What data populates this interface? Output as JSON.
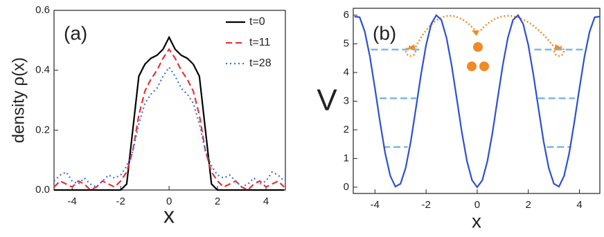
{
  "chart_data": [
    {
      "type": "line",
      "annotation": "(a)",
      "x_label": "x",
      "y_label": "density ρ(x)",
      "x": [
        -4.75,
        -4.5,
        -4.25,
        -4,
        -3.75,
        -3.5,
        -3.25,
        -3,
        -2.75,
        -2.5,
        -2.25,
        -2,
        -1.75,
        -1.5,
        -1.25,
        -1,
        -0.75,
        -0.5,
        -0.25,
        0,
        0.25,
        0.5,
        0.75,
        1,
        1.25,
        1.5,
        1.75,
        2,
        2.25,
        2.5,
        2.75,
        3,
        3.25,
        3.5,
        3.75,
        4,
        4.25,
        4.5,
        4.75
      ],
      "series": [
        {
          "name": "t=0",
          "color": "#000000",
          "dash": "solid",
          "values": [
            0,
            0,
            0,
            0,
            0,
            0,
            0,
            0,
            0,
            0,
            0,
            0,
            0.02,
            0.2,
            0.38,
            0.42,
            0.44,
            0.45,
            0.47,
            0.51,
            0.47,
            0.45,
            0.44,
            0.42,
            0.38,
            0.2,
            0.02,
            0,
            0,
            0,
            0,
            0,
            0,
            0,
            0,
            0,
            0,
            0,
            0
          ]
        },
        {
          "name": "t=11",
          "color": "#e8303a",
          "dash": "dashed",
          "values": [
            0.01,
            0.03,
            0.02,
            0.01,
            0.03,
            0.02,
            0,
            0.01,
            0.03,
            0.02,
            0.01,
            0.03,
            0.06,
            0.13,
            0.25,
            0.33,
            0.37,
            0.4,
            0.44,
            0.47,
            0.44,
            0.4,
            0.37,
            0.33,
            0.25,
            0.13,
            0.06,
            0.03,
            0.01,
            0.02,
            0.03,
            0.01,
            0,
            0.02,
            0.03,
            0.01,
            0.02,
            0.03,
            0.01
          ]
        },
        {
          "name": "t=28",
          "color": "#3a6ee8",
          "dash": "dotted",
          "values": [
            0.03,
            0.05,
            0.06,
            0.03,
            0.02,
            0.04,
            0.02,
            0.01,
            0.03,
            0.05,
            0.04,
            0.05,
            0.08,
            0.13,
            0.22,
            0.29,
            0.32,
            0.34,
            0.38,
            0.41,
            0.38,
            0.34,
            0.32,
            0.29,
            0.22,
            0.13,
            0.08,
            0.05,
            0.04,
            0.05,
            0.03,
            0.01,
            0.02,
            0.04,
            0.02,
            0.03,
            0.06,
            0.05,
            0.03
          ]
        }
      ],
      "xlim": [
        -4.75,
        4.8
      ],
      "ylim": [
        0,
        0.6
      ],
      "xticks": [
        -4,
        -2,
        0,
        2,
        4
      ],
      "yticks": [
        {
          "value": 0,
          "label": "0.0"
        },
        0.2,
        0.4,
        0.6
      ],
      "legend": "top-right"
    },
    {
      "type": "line",
      "annotation": "(b)",
      "x_label": "x",
      "y_label": "V",
      "x": [
        -4.8,
        -4.6,
        -4.4,
        -4.2,
        -4,
        -3.8,
        -3.6,
        -3.4,
        -3.2,
        -3,
        -2.8,
        -2.6,
        -2.4,
        -2.2,
        -2,
        -1.8,
        -1.6,
        -1.4,
        -1.2,
        -1,
        -0.8,
        -0.6,
        -0.4,
        -0.2,
        0,
        0.2,
        0.4,
        0.6,
        0.8,
        1,
        1.2,
        1.4,
        1.6,
        1.8,
        2,
        2.2,
        2.4,
        2.6,
        2.8,
        3,
        3.2,
        3.4,
        3.6,
        3.8,
        4,
        4.2,
        4.4,
        4.6,
        4.8
      ],
      "series": [
        {
          "color": "#2b4fd6",
          "dash": "solid",
          "values": [
            5.95,
            5.93,
            5.43,
            4.56,
            3.44,
            2.26,
            1.18,
            0.39,
            0.02,
            0.12,
            0.67,
            1.59,
            2.74,
            3.92,
            4.96,
            5.69,
            6.0,
            5.83,
            5.21,
            4.25,
            3.09,
            1.91,
            0.91,
            0.24,
            0,
            0.24,
            0.91,
            1.91,
            3.09,
            4.25,
            5.21,
            5.83,
            6.0,
            5.69,
            4.96,
            3.92,
            2.74,
            1.59,
            0.67,
            0.12,
            0.02,
            0.39,
            1.18,
            2.26,
            3.44,
            4.56,
            5.43,
            5.93,
            5.95
          ]
        }
      ],
      "levels": [
        1.4,
        3.1,
        4.8
      ],
      "level_color": "#7ab8e0",
      "xlim": [
        -4.85,
        4.8
      ],
      "ylim": [
        -0.22,
        6.24
      ],
      "xticks": [
        -4,
        -2,
        0,
        2,
        4
      ],
      "yticks": [
        0,
        1,
        2,
        3,
        4,
        5,
        6
      ]
    }
  ]
}
